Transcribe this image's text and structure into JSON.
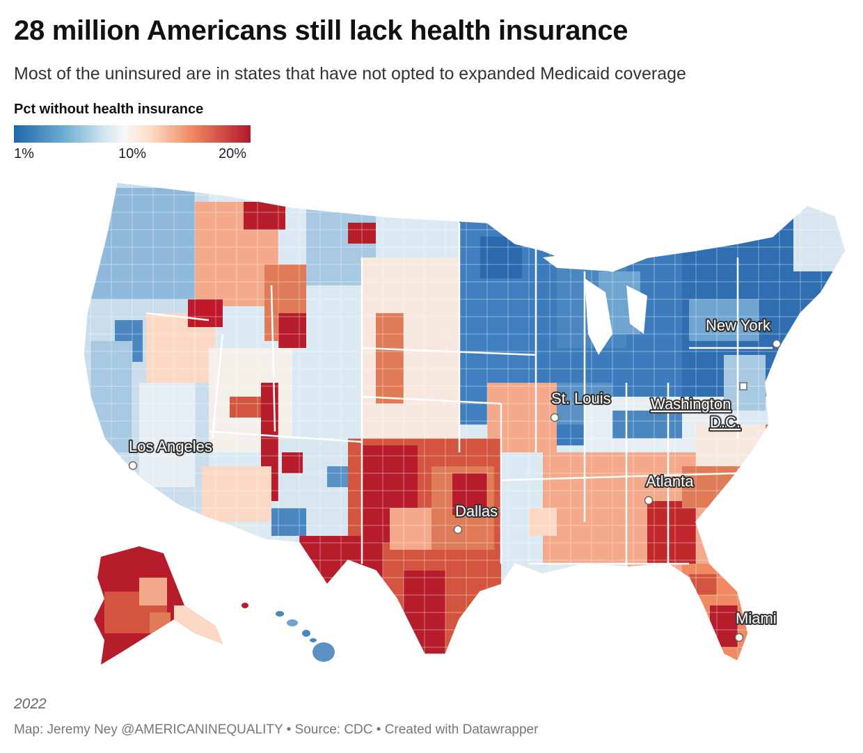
{
  "title": "28 million Americans still lack health insurance",
  "subtitle": "Most of the uninsured are in states that have not opted to expanded Medicaid coverage",
  "legend": {
    "title": "Pct without health insurance",
    "ticks": [
      {
        "label": "1%",
        "value": 1
      },
      {
        "label": "10%",
        "value": 10
      },
      {
        "label": "20%",
        "value": 20
      }
    ],
    "colors": [
      "#2166ac",
      "#67a9cf",
      "#d1e5f0",
      "#f7f7f7",
      "#fddbc7",
      "#ef8a62",
      "#b2182b"
    ]
  },
  "cities": [
    {
      "name": "Los Angeles",
      "id": "los-angeles"
    },
    {
      "name": "St. Louis",
      "id": "st-louis"
    },
    {
      "name": "Washington",
      "id": "washington"
    },
    {
      "name": "D.C.",
      "id": "dc"
    },
    {
      "name": "New York",
      "id": "new-york"
    },
    {
      "name": "Atlanta",
      "id": "atlanta"
    },
    {
      "name": "Dallas",
      "id": "dallas"
    },
    {
      "name": "Miami",
      "id": "miami"
    }
  ],
  "footnote": "2022",
  "byline": "Map: Jeremy Ney @AMERICANINEQUALITY • Source: CDC • Created with Datawrapper"
}
